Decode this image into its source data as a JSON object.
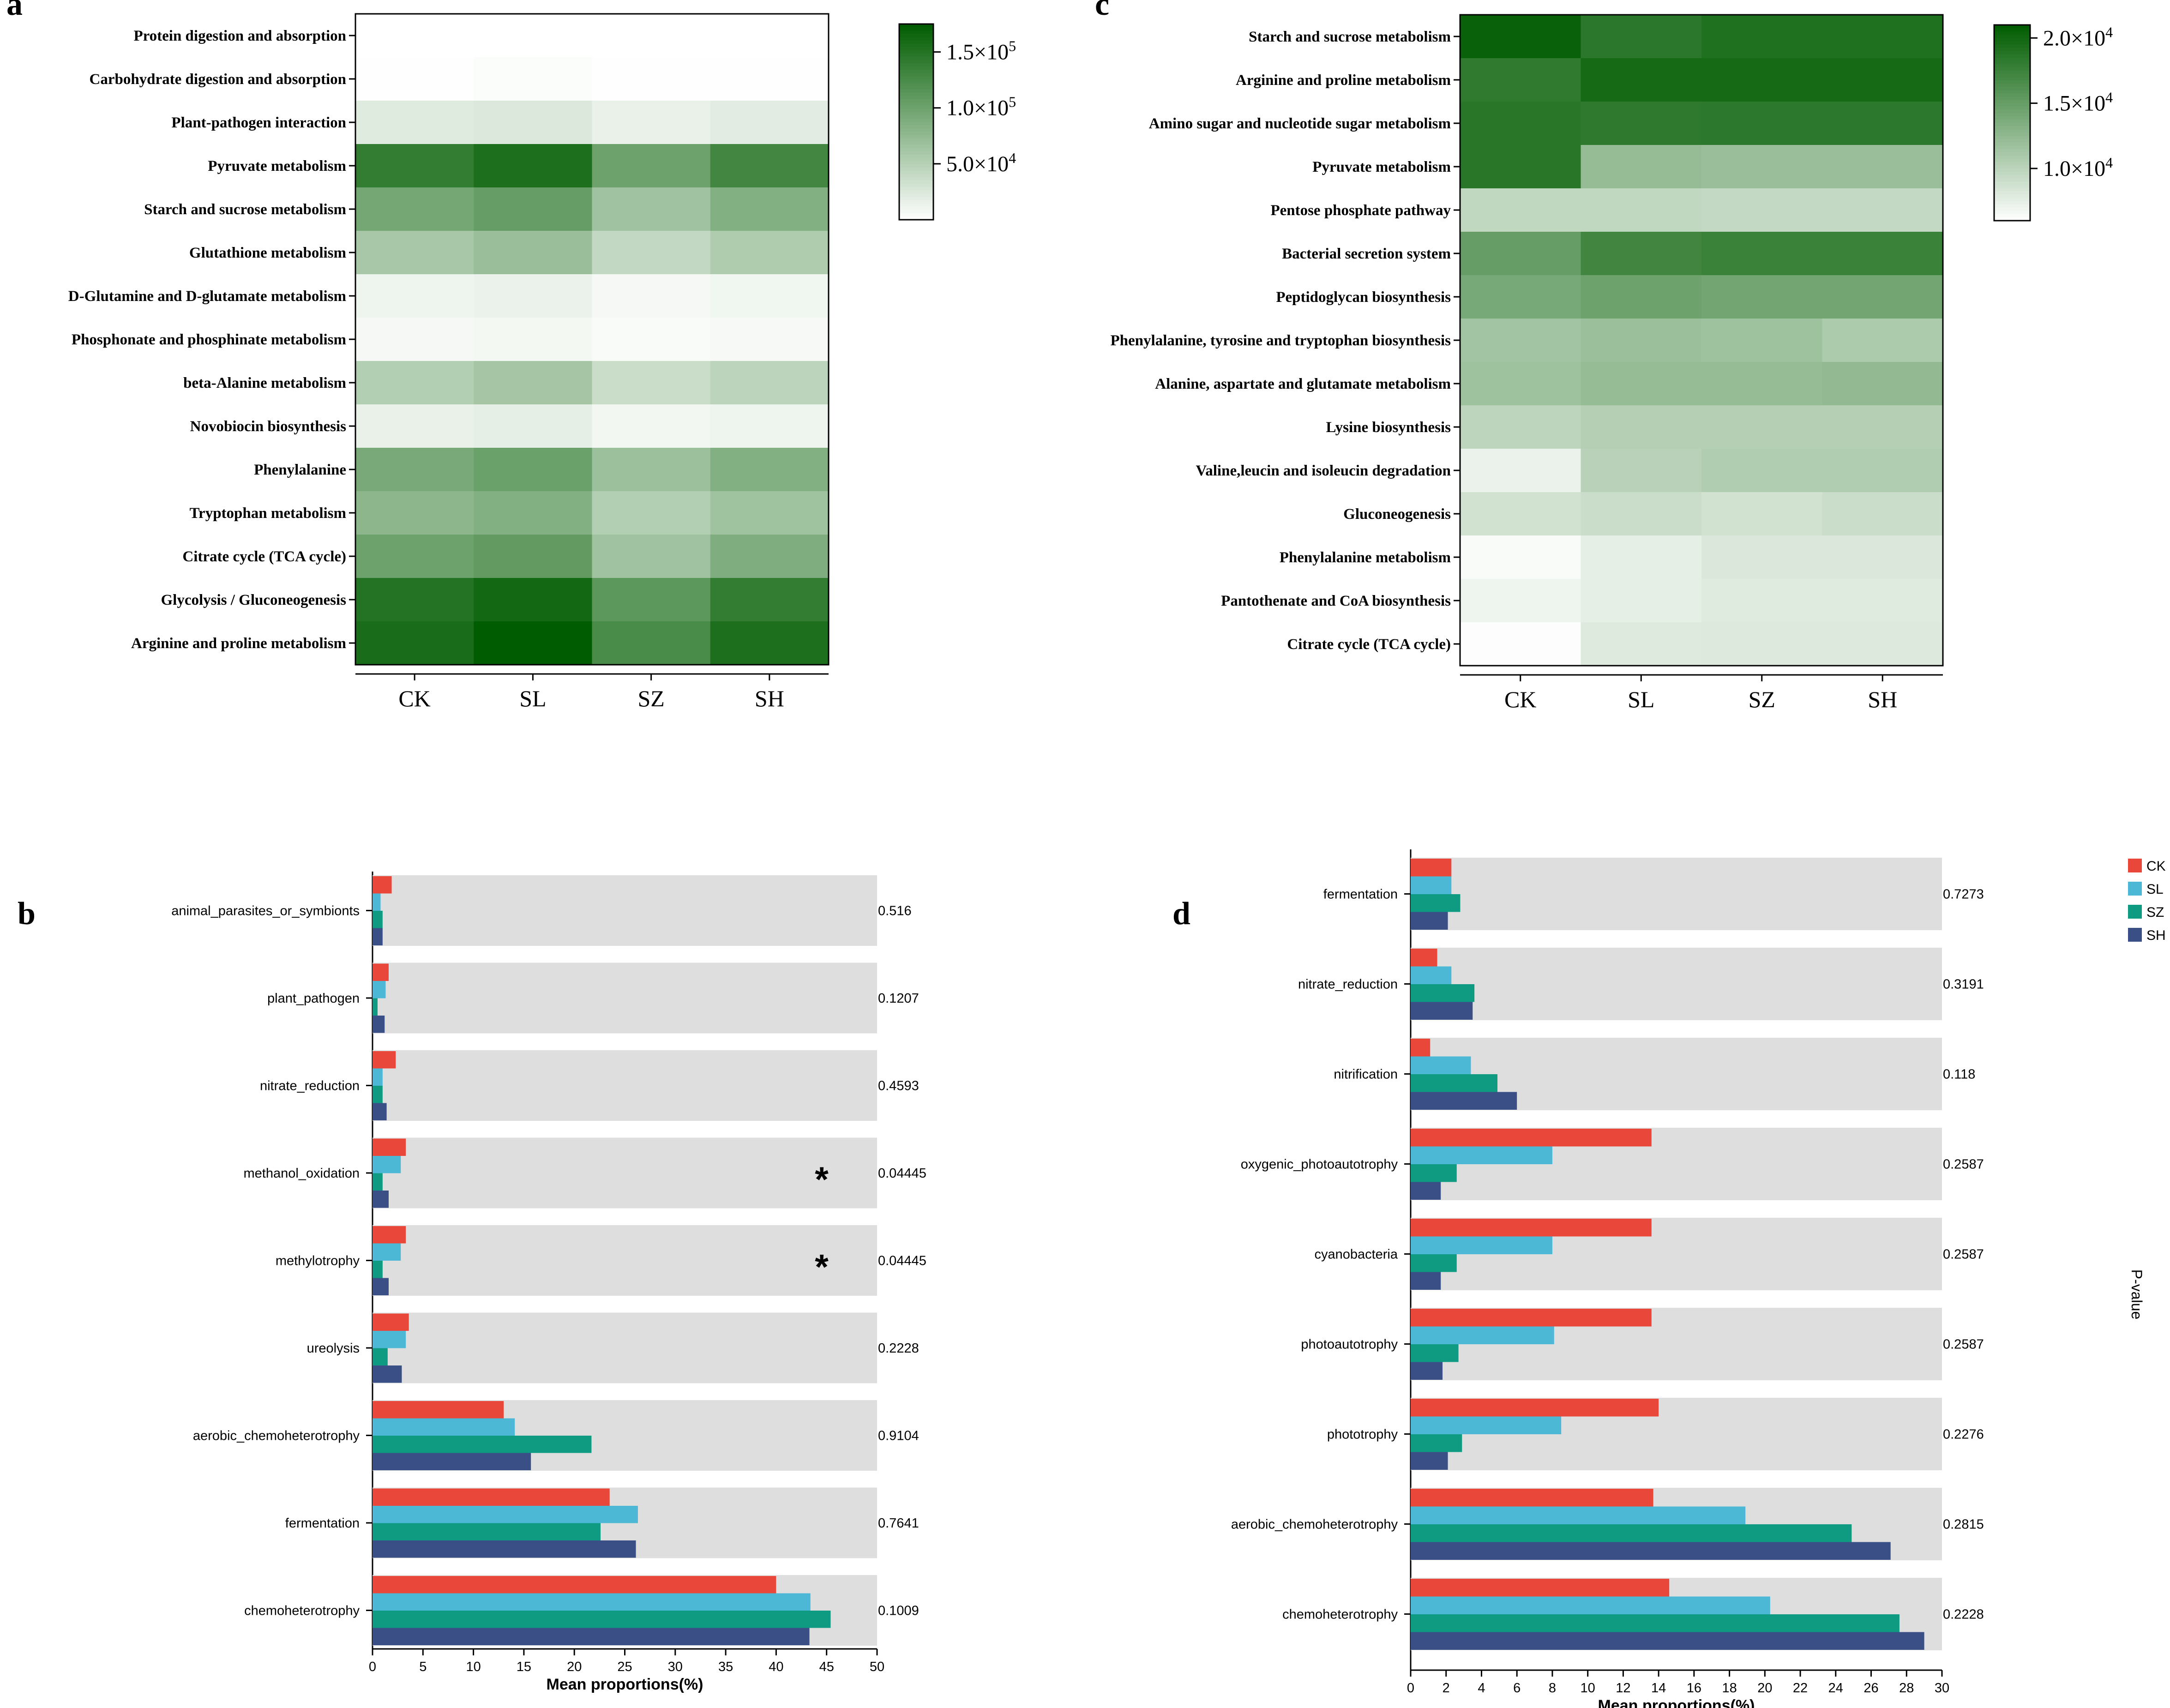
{
  "colors": {
    "CK": "#e8473a",
    "SL": "#4db8d6",
    "SZ": "#0f9a82",
    "SH": "#3a4f86",
    "panel_bg": "#dedede",
    "heat_high": "#005c00",
    "heat_low": "#ffffff"
  },
  "chart_data": [
    {
      "panel": "a",
      "type": "heatmap",
      "columns": [
        "CK",
        "SL",
        "SZ",
        "SH"
      ],
      "rows": [
        "Protein digestion and absorption",
        "Carbohydrate digestion and absorption",
        "Plant-pathogen interaction",
        "Pyruvate metabolism",
        "Starch and sucrose metabolism",
        "Glutathione metabolism",
        "D-Glutamine and D-glutamate metabolism",
        "Phosphonate and phosphinate metabolism",
        "beta-Alanine metabolism",
        "Novobiocin biosynthesis",
        "Phenylalanine",
        "Tryptophan metabolism",
        "Citrate cycle (TCA cycle)",
        "Glycolysis / Gluconeogenesis",
        "Arginine and proline metabolism"
      ],
      "values": [
        [
          400,
          300,
          200,
          250
        ],
        [
          1500,
          2500,
          1000,
          1500
        ],
        [
          22000,
          25000,
          15000,
          20000
        ],
        [
          140000,
          155000,
          100000,
          130000
        ],
        [
          95000,
          105000,
          65000,
          85000
        ],
        [
          60000,
          70000,
          42000,
          55000
        ],
        [
          12000,
          14000,
          7000,
          10000
        ],
        [
          7000,
          8000,
          4000,
          6000
        ],
        [
          52000,
          62000,
          37000,
          46000
        ],
        [
          15000,
          17000,
          9000,
          12000
        ],
        [
          92000,
          102000,
          68000,
          85000
        ],
        [
          78000,
          85000,
          52000,
          66000
        ],
        [
          100000,
          108000,
          65000,
          88000
        ],
        [
          150000,
          162000,
          112000,
          140000
        ],
        [
          158000,
          175000,
          125000,
          155000
        ]
      ],
      "vmin": 0,
      "vmax": 175000,
      "colorbar_ticks": [
        {
          "value": 50000,
          "label": "5.0×10",
          "exp": "4"
        },
        {
          "value": 100000,
          "label": "1.0×10",
          "exp": "5"
        },
        {
          "value": 150000,
          "label": "1.5×10",
          "exp": "5"
        }
      ]
    },
    {
      "panel": "c",
      "type": "heatmap",
      "columns": [
        "CK",
        "SL",
        "SZ",
        "SH"
      ],
      "rows": [
        "Starch and sucrose metabolism",
        "Arginine and proline metabolism",
        "Amino sugar and nucleotide sugar metabolism",
        "Pyruvate metabolism",
        "Pentose phosphate pathway",
        "Bacterial secretion system",
        "Peptidoglycan biosynthesis",
        "Phenylalanine, tyrosine and tryptophan biosynthesis",
        "Alanine, aspartate and glutamate metabolism",
        "Lysine biosynthesis",
        "Valine,leucin and isoleucin degradation",
        "Gluconeogenesis",
        "Phenylalanine metabolism",
        "Pantothenate and CoA biosynthesis",
        "Citrate cycle (TCA cycle)"
      ],
      "values": [
        [
          20500,
          18500,
          19200,
          19200
        ],
        [
          18200,
          19700,
          19700,
          19700
        ],
        [
          18600,
          18300,
          18400,
          18400
        ],
        [
          18600,
          12200,
          12000,
          12000
        ],
        [
          9700,
          9700,
          9500,
          9500
        ],
        [
          15000,
          17200,
          17600,
          17600
        ],
        [
          14000,
          14600,
          14300,
          14300
        ],
        [
          11400,
          11900,
          11700,
          10900
        ],
        [
          11700,
          12200,
          12200,
          12400
        ],
        [
          9900,
          10400,
          10400,
          10400
        ],
        [
          7200,
          10200,
          10600,
          10600
        ],
        [
          8700,
          9100,
          8700,
          9100
        ],
        [
          6400,
          7500,
          8200,
          8200
        ],
        [
          7000,
          7500,
          7800,
          7800
        ],
        [
          6200,
          7900,
          8000,
          8000
        ]
      ],
      "vmin": 6000,
      "vmax": 21000,
      "colorbar_ticks": [
        {
          "value": 10000,
          "label": "1.0×10",
          "exp": "4"
        },
        {
          "value": 15000,
          "label": "1.5×10",
          "exp": "4"
        },
        {
          "value": 20000,
          "label": "2.0×10",
          "exp": "4"
        }
      ]
    },
    {
      "panel": "b",
      "type": "bar",
      "orientation": "horizontal",
      "categories": [
        "animal_parasites_or_symbionts",
        "plant_pathogen",
        "nitrate_reduction",
        "methanol_oxidation",
        "methylotrophy",
        "ureolysis",
        "aerobic_chemoheterotrophy",
        "fermentation",
        "chemoheterotrophy"
      ],
      "series": [
        {
          "name": "CK",
          "values": [
            1.9,
            1.6,
            2.3,
            3.3,
            3.3,
            3.6,
            13.0,
            23.5,
            40.0
          ]
        },
        {
          "name": "SL",
          "values": [
            0.8,
            1.3,
            1.0,
            2.8,
            2.8,
            3.3,
            14.1,
            26.3,
            43.4
          ]
        },
        {
          "name": "SZ",
          "values": [
            1.0,
            0.5,
            1.0,
            1.0,
            1.0,
            1.5,
            21.7,
            22.6,
            45.4
          ]
        },
        {
          "name": "SH",
          "values": [
            1.0,
            1.2,
            1.4,
            1.6,
            1.6,
            2.9,
            15.7,
            26.1,
            43.3
          ]
        }
      ],
      "p_values": [
        "0.516",
        "0.1207",
        "0.4593",
        "0.04445",
        "0.04445",
        "0.2228",
        "0.9104",
        "0.7641",
        "0.1009"
      ],
      "significance": [
        "",
        "",
        "",
        "*",
        "*",
        "",
        "",
        "",
        ""
      ],
      "xlim": [
        0,
        50
      ],
      "xticks": [
        0,
        5,
        10,
        15,
        20,
        25,
        30,
        35,
        40,
        45,
        50
      ],
      "xlabel": "Mean proportions(%)"
    },
    {
      "panel": "d",
      "type": "bar",
      "orientation": "horizontal",
      "categories": [
        "fermentation",
        "nitrate_reduction",
        "nitrification",
        "oxygenic_photoautotrophy",
        "cyanobacteria",
        "photoautotrophy",
        "phototrophy",
        "aerobic_chemoheterotrophy",
        "chemoheterotrophy"
      ],
      "series": [
        {
          "name": "CK",
          "values": [
            2.3,
            1.5,
            1.1,
            13.6,
            13.6,
            13.6,
            14.0,
            13.7,
            14.6
          ]
        },
        {
          "name": "SL",
          "values": [
            2.3,
            2.3,
            3.4,
            8.0,
            8.0,
            8.1,
            8.5,
            18.9,
            20.3
          ]
        },
        {
          "name": "SZ",
          "values": [
            2.8,
            3.6,
            4.9,
            2.6,
            2.6,
            2.7,
            2.9,
            24.9,
            27.6
          ]
        },
        {
          "name": "SH",
          "values": [
            2.1,
            3.5,
            6.0,
            1.7,
            1.7,
            1.8,
            2.1,
            27.1,
            29.0
          ]
        }
      ],
      "p_values": [
        "0.7273",
        "0.3191",
        "0.118",
        "0.2587",
        "0.2587",
        "0.2587",
        "0.2276",
        "0.2815",
        "0.2228"
      ],
      "xlim": [
        0,
        30
      ],
      "xticks": [
        0,
        2,
        4,
        6,
        8,
        10,
        12,
        14,
        16,
        18,
        20,
        22,
        24,
        26,
        28,
        30
      ],
      "xlabel": "Mean proportions(%)",
      "legend": [
        "CK",
        "SL",
        "SZ",
        "SH"
      ],
      "legend_position": "top-right",
      "side_label": "P-value"
    }
  ]
}
